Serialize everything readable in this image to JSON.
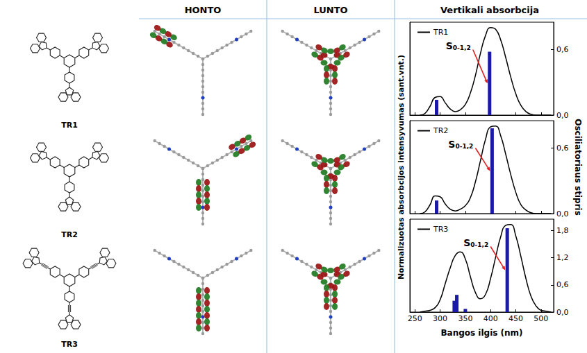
{
  "header": {
    "orbitals": [
      "HONTO",
      "LUNTO"
    ],
    "spectra": "Vertikali absorbcija"
  },
  "molecules": [
    "TR1",
    "TR2",
    "TR3"
  ],
  "spectra_axes": {
    "xlabel": "Bangos ilgis (nm)",
    "ylabel": "Normalizuotas absorbcijos intensyvumas (sant.vnt.)",
    "y2label": "Osciliatoriaus stipris"
  },
  "chart_data": [
    {
      "type": "line",
      "xlim": [
        240,
        525
      ],
      "xticks": [
        250,
        300,
        350,
        400,
        450,
        500
      ],
      "ylim": [
        0,
        1.05
      ],
      "y2lim": [
        0,
        0.85
      ],
      "y2ticks": [
        {
          "value": 0,
          "label": "0,0"
        },
        {
          "value": 0.6,
          "label": "0,6"
        }
      ],
      "tick_labels": "y",
      "legend": "upper left",
      "series": [
        {
          "name": "TR1",
          "type": "line",
          "color": "#000000",
          "x": [
            260,
            270,
            280,
            290,
            300,
            310,
            320,
            330,
            340,
            350,
            360,
            370,
            380,
            390,
            400,
            410,
            420,
            430,
            440,
            450,
            460,
            470,
            480,
            490,
            500,
            510,
            520
          ],
          "values": [
            0,
            0.02,
            0.1,
            0.2,
            0.21,
            0.14,
            0.07,
            0.04,
            0.06,
            0.12,
            0.25,
            0.45,
            0.7,
            0.9,
            0.99,
            0.97,
            0.85,
            0.65,
            0.43,
            0.24,
            0.11,
            0.04,
            0.01,
            0,
            0,
            0,
            0
          ]
        },
        {
          "type": "bar",
          "axis": "y2",
          "color": "#1a1aa6",
          "x": [
            293,
            398
          ],
          "values": [
            0.14,
            0.58
          ]
        }
      ],
      "annotations": [
        {
          "text": "S",
          "subscript": "0-1,2",
          "x": 398
        }
      ]
    },
    {
      "type": "line",
      "xlim": [
        240,
        525
      ],
      "xticks": [
        250,
        300,
        350,
        400,
        450,
        500
      ],
      "ylim": [
        0,
        1.05
      ],
      "y2lim": [
        0,
        0.85
      ],
      "y2ticks": [
        {
          "value": 0,
          "label": "0,0"
        },
        {
          "value": 0.6,
          "label": "0,6"
        }
      ],
      "tick_labels": "y",
      "legend": "upper left",
      "series": [
        {
          "name": "TR2",
          "type": "line",
          "color": "#000000",
          "x": [
            260,
            270,
            280,
            290,
            300,
            310,
            320,
            330,
            340,
            350,
            360,
            370,
            380,
            390,
            400,
            410,
            420,
            430,
            440,
            450,
            460,
            470,
            480,
            490,
            500,
            510,
            520
          ],
          "values": [
            0,
            0.02,
            0.1,
            0.2,
            0.19,
            0.11,
            0.05,
            0.03,
            0.05,
            0.09,
            0.18,
            0.36,
            0.6,
            0.84,
            0.98,
            0.99,
            0.88,
            0.67,
            0.44,
            0.24,
            0.1,
            0.04,
            0.01,
            0,
            0,
            0,
            0
          ]
        },
        {
          "type": "bar",
          "axis": "y2",
          "color": "#1a1aa6",
          "x": [
            293,
            403
          ],
          "values": [
            0.12,
            0.78
          ]
        }
      ],
      "annotations": [
        {
          "text": "S",
          "subscript": "0-1,2",
          "x": 403
        }
      ]
    },
    {
      "type": "line",
      "xlim": [
        240,
        525
      ],
      "xticks": [
        250,
        300,
        350,
        400,
        450,
        500
      ],
      "ylim": [
        0,
        1.05
      ],
      "y2lim": [
        0,
        2.05
      ],
      "y2ticks": [
        {
          "value": 0,
          "label": "0,0"
        },
        {
          "value": 0.6,
          "label": "0,6"
        },
        {
          "value": 1.2,
          "label": "1,2"
        },
        {
          "value": 1.8,
          "label": "1,8"
        }
      ],
      "legend": "upper left",
      "series": [
        {
          "name": "TR3",
          "type": "line",
          "color": "#000000",
          "x": [
            260,
            270,
            280,
            290,
            300,
            310,
            320,
            330,
            340,
            350,
            360,
            370,
            380,
            390,
            400,
            410,
            420,
            430,
            440,
            450,
            460,
            470,
            480,
            490,
            500,
            510,
            520
          ],
          "values": [
            0,
            0.01,
            0.02,
            0.05,
            0.14,
            0.32,
            0.5,
            0.64,
            0.68,
            0.6,
            0.4,
            0.22,
            0.15,
            0.2,
            0.38,
            0.62,
            0.85,
            0.98,
            0.99,
            0.86,
            0.63,
            0.38,
            0.18,
            0.07,
            0.02,
            0.01,
            0
          ]
        },
        {
          "type": "bar",
          "axis": "y2",
          "color": "#1a1aa6",
          "x": [
            328,
            333,
            350,
            433
          ],
          "values": [
            0.25,
            0.38,
            0.07,
            1.85
          ]
        }
      ],
      "annotations": [
        {
          "text": "S",
          "subscript": "0-1,2",
          "x": 433
        }
      ]
    }
  ]
}
